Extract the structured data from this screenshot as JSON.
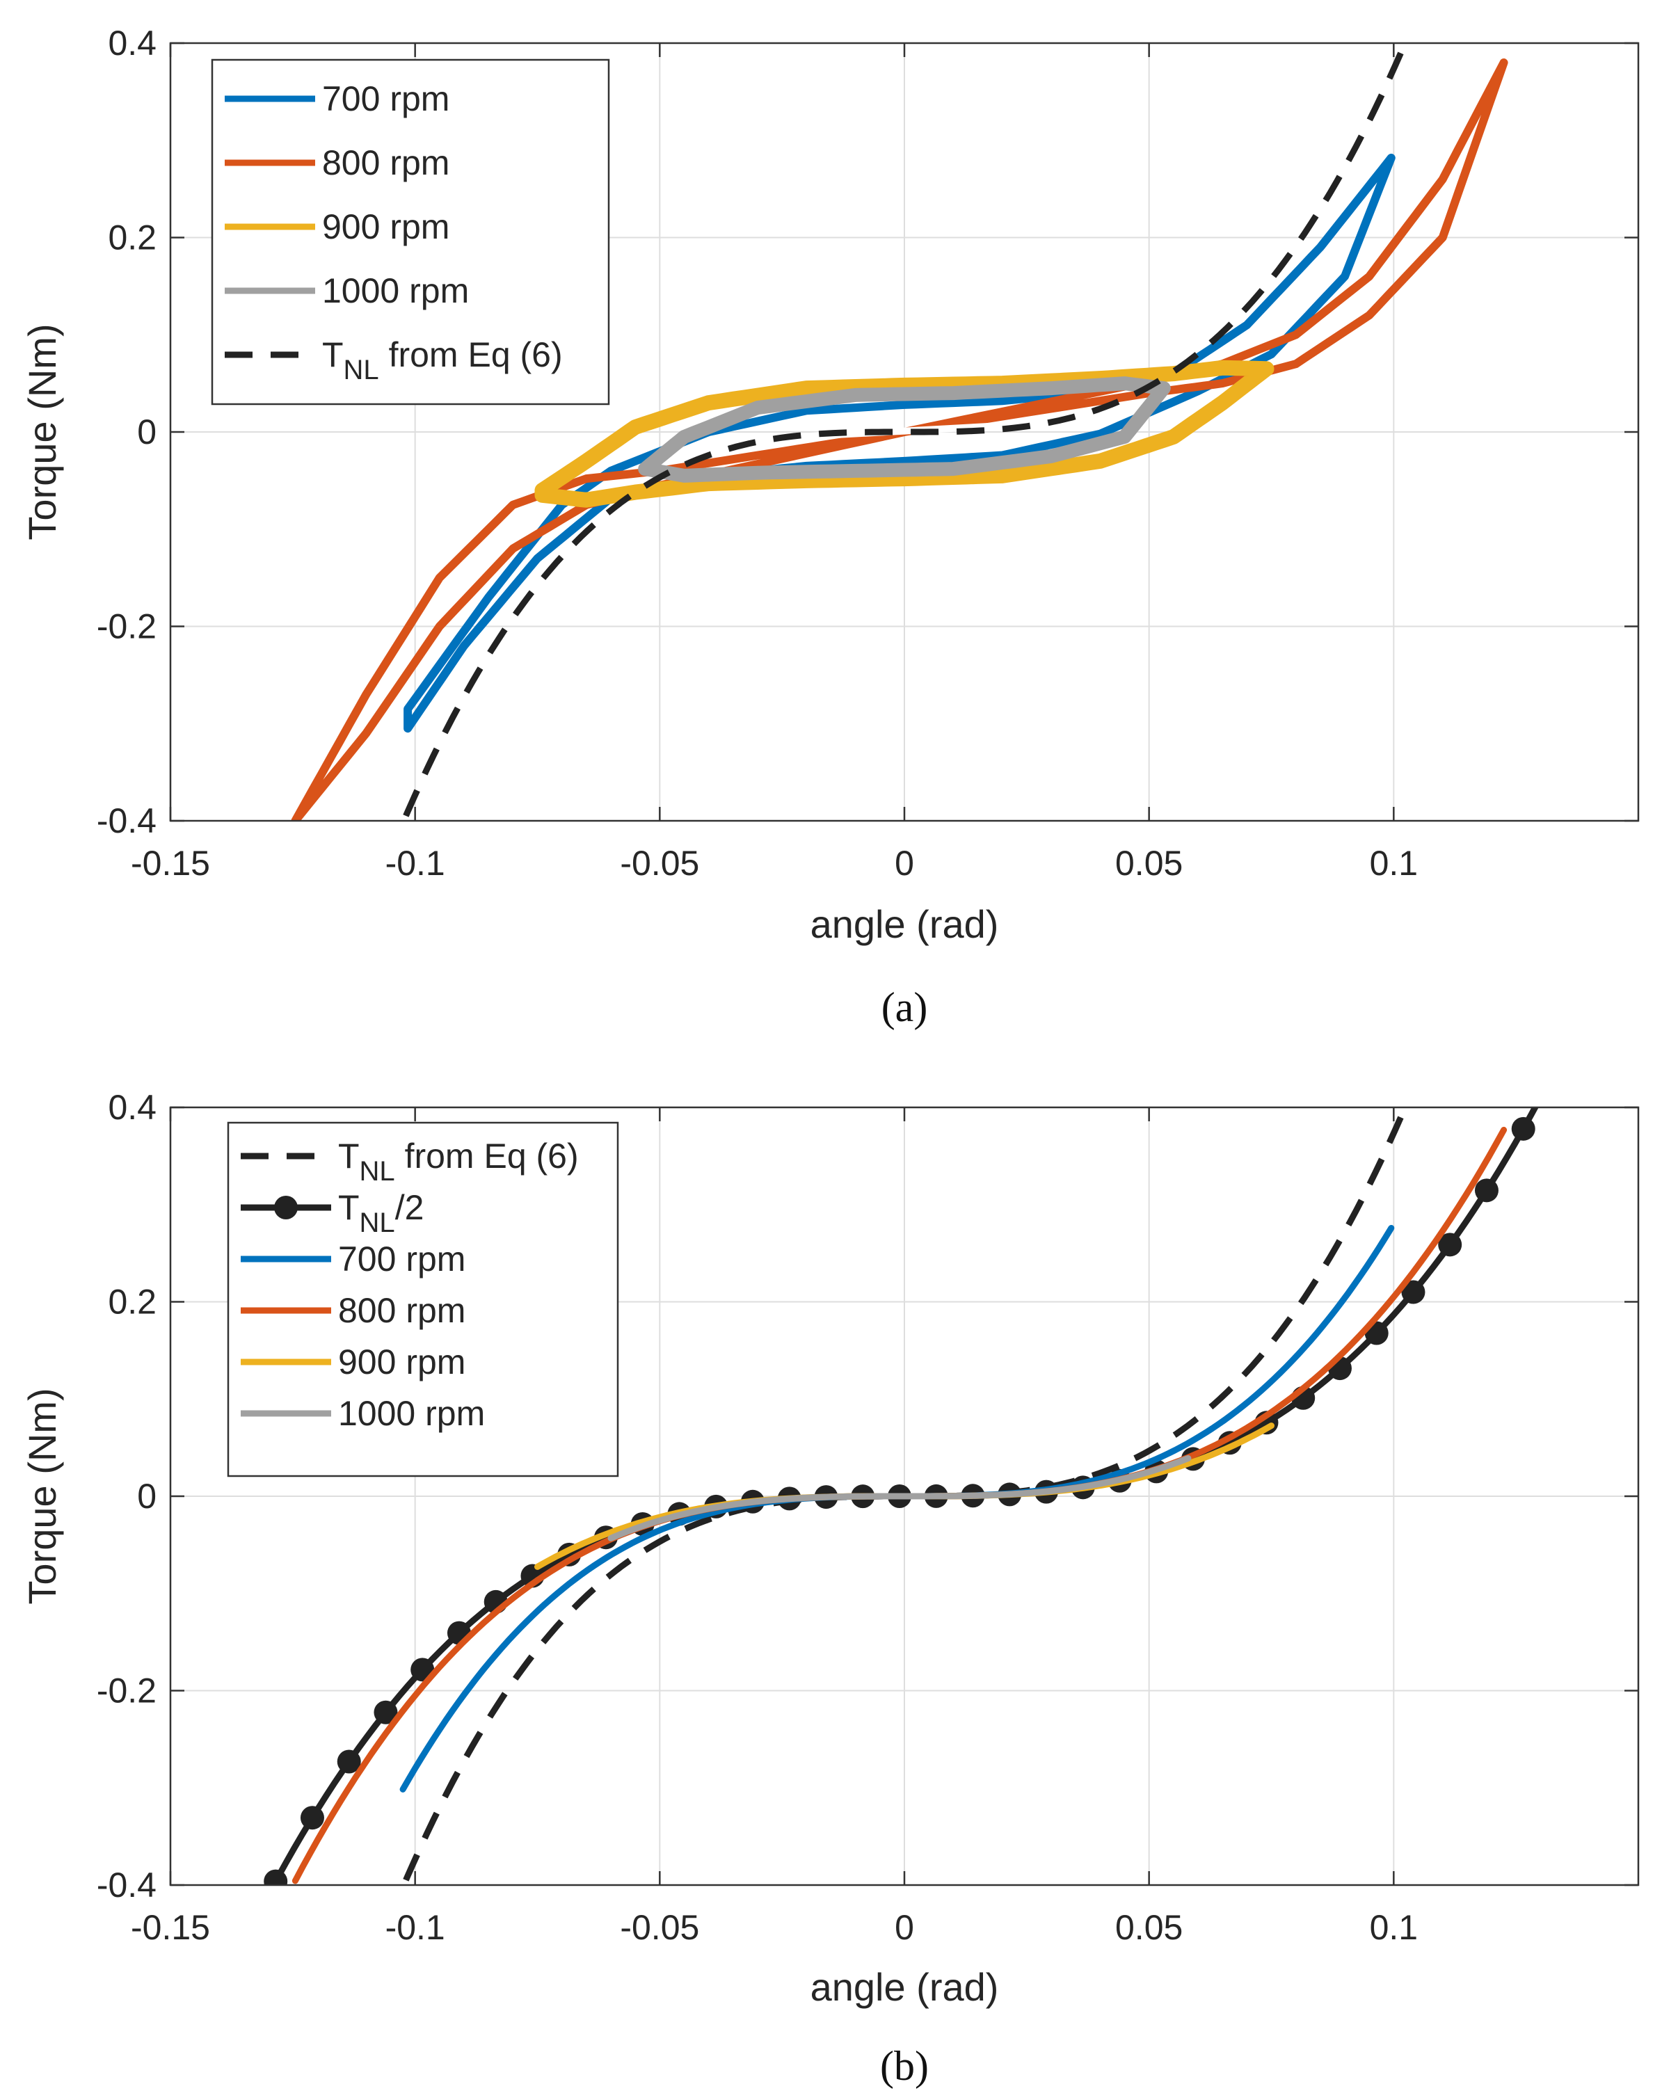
{
  "figure": {
    "panels": [
      {
        "caption": "(a)",
        "ylabel": "Torque (Nm)",
        "xlabel": "angle (rad)",
        "xlim": [
          -0.15,
          0.15
        ],
        "ylim": [
          -0.4,
          0.4
        ],
        "xticks": [
          "-0.15",
          "-0.1",
          "-0.05",
          "0",
          "0.05",
          "0.1"
        ],
        "yticks": [
          "-0.4",
          "-0.2",
          "0",
          "0.2",
          "0.4"
        ],
        "legend": [
          {
            "label": "700 rpm",
            "color": "#0072BD",
            "style": "solid"
          },
          {
            "label": "800 rpm",
            "color": "#D95319",
            "style": "solid"
          },
          {
            "label": "900 rpm",
            "color": "#EDB120",
            "style": "solid"
          },
          {
            "label": "1000 rpm",
            "color": "#A0A0A0",
            "style": "solid"
          },
          {
            "label": "T",
            "sub": "NL",
            "suffix": " from Eq (6)",
            "color": "#222222",
            "style": "dashed"
          }
        ]
      },
      {
        "caption": "(b)",
        "ylabel": "Torque (Nm)",
        "xlabel": "angle (rad)",
        "xlim": [
          -0.15,
          0.15
        ],
        "ylim": [
          -0.4,
          0.4
        ],
        "xticks": [
          "-0.15",
          "-0.1",
          "-0.05",
          "0",
          "0.05",
          "0.1"
        ],
        "yticks": [
          "-0.4",
          "-0.2",
          "0",
          "0.2",
          "0.4"
        ],
        "legend": [
          {
            "label": "T",
            "sub": "NL",
            "suffix": " from Eq (6)",
            "color": "#222222",
            "style": "dashed"
          },
          {
            "label": "T",
            "sub": "NL",
            "suffix": "/2",
            "color": "#222222",
            "style": "markers"
          },
          {
            "label": "700 rpm",
            "color": "#0072BD",
            "style": "solid"
          },
          {
            "label": "800 rpm",
            "color": "#D95319",
            "style": "solid"
          },
          {
            "label": "900 rpm",
            "color": "#EDB120",
            "style": "solid"
          },
          {
            "label": "1000 rpm",
            "color": "#A0A0A0",
            "style": "solid"
          }
        ]
      }
    ]
  },
  "chart_data": [
    {
      "type": "line",
      "xlabel": "angle (rad)",
      "ylabel": "Torque (Nm)",
      "xlim": [
        -0.15,
        0.15
      ],
      "ylim": [
        -0.4,
        0.4
      ],
      "grid": true,
      "legend_placement": "top-left",
      "series": [
        {
          "name": "700 rpm",
          "color": "#0072BD",
          "upper": {
            "x": [
              -0.1015,
              -0.085,
              -0.07,
              -0.06,
              -0.04,
              -0.02,
              0.0,
              0.02,
              0.04,
              0.055,
              0.07,
              0.085,
              0.0995
            ],
            "y": [
              -0.285,
              -0.17,
              -0.075,
              -0.04,
              -0.0,
              0.022,
              0.028,
              0.032,
              0.042,
              0.06,
              0.11,
              0.19,
              0.282
            ]
          },
          "lower": {
            "x": [
              -0.1015,
              -0.09,
              -0.075,
              -0.06,
              -0.04,
              -0.02,
              0.0,
              0.02,
              0.04,
              0.06,
              0.075,
              0.09,
              0.0995
            ],
            "y": [
              -0.305,
              -0.22,
              -0.13,
              -0.068,
              -0.045,
              -0.035,
              -0.03,
              -0.024,
              -0.002,
              0.042,
              0.08,
              0.16,
              0.282
            ]
          }
        },
        {
          "name": "800 rpm",
          "color": "#D95319",
          "upper": {
            "x": [
              -0.1245,
              -0.11,
              -0.095,
              -0.08,
              -0.065,
              -0.05,
              0.0,
              0.05,
              0.065,
              0.08,
              0.095,
              0.11,
              0.1225
            ],
            "y": [
              -0.4,
              -0.27,
              -0.15,
              -0.075,
              -0.048,
              -0.04,
              0.0,
              0.052,
              0.07,
              0.1,
              0.16,
              0.26,
              0.38
            ]
          },
          "lower": {
            "x": [
              -0.1245,
              -0.11,
              -0.095,
              -0.08,
              -0.065,
              -0.05,
              0.0,
              0.05,
              0.065,
              0.08,
              0.095,
              0.11,
              0.1225
            ],
            "y": [
              -0.4,
              -0.31,
              -0.2,
              -0.12,
              -0.075,
              -0.055,
              0.0,
              0.04,
              0.05,
              0.07,
              0.12,
              0.2,
              0.38
            ]
          }
        },
        {
          "name": "900 rpm",
          "color": "#EDB120",
          "upper": {
            "x": [
              -0.074,
              -0.065,
              -0.055,
              -0.04,
              -0.02,
              0.0,
              0.02,
              0.04,
              0.055,
              0.065,
              0.074
            ],
            "y": [
              -0.06,
              -0.03,
              0.005,
              0.03,
              0.045,
              0.048,
              0.05,
              0.055,
              0.06,
              0.066,
              0.065
            ]
          },
          "lower": {
            "x": [
              -0.074,
              -0.065,
              -0.055,
              -0.04,
              -0.02,
              0.0,
              0.02,
              0.04,
              0.055,
              0.065,
              0.074
            ],
            "y": [
              -0.065,
              -0.07,
              -0.062,
              -0.053,
              -0.05,
              -0.048,
              -0.045,
              -0.03,
              -0.005,
              0.03,
              0.065
            ]
          }
        },
        {
          "name": "1000 rpm",
          "color": "#A0A0A0",
          "upper": {
            "x": [
              -0.053,
              -0.045,
              -0.03,
              -0.01,
              0.01,
              0.03,
              0.045,
              0.053
            ],
            "y": [
              -0.038,
              -0.005,
              0.025,
              0.038,
              0.04,
              0.045,
              0.05,
              0.045
            ]
          },
          "lower": {
            "x": [
              -0.053,
              -0.045,
              -0.03,
              -0.01,
              0.01,
              0.03,
              0.045,
              0.053
            ],
            "y": [
              -0.038,
              -0.045,
              -0.042,
              -0.04,
              -0.038,
              -0.025,
              -0.005,
              0.045
            ]
          }
        },
        {
          "name": "T_NL from Eq (6)",
          "color": "#222222",
          "style": "dashed",
          "formula": "y = 373.4 * x^3",
          "x_range": [
            -0.1055,
            0.1055
          ]
        }
      ]
    },
    {
      "type": "line",
      "xlabel": "angle (rad)",
      "ylabel": "Torque (Nm)",
      "xlim": [
        -0.15,
        0.15
      ],
      "ylim": [
        -0.4,
        0.4
      ],
      "grid": true,
      "legend_placement": "top-left",
      "series": [
        {
          "name": "T_NL from Eq (6)",
          "color": "#222222",
          "style": "dashed",
          "formula": "y = 373.4 * x^3",
          "x_range": [
            -0.1055,
            0.1055
          ]
        },
        {
          "name": "T_NL/2",
          "color": "#222222",
          "style": "markers",
          "formula": "y = 186.7 * x^3",
          "x_range": [
            -0.1331,
            0.1331
          ],
          "marker_x": [
            -0.1285,
            -0.121,
            -0.1135,
            -0.106,
            -0.0985,
            -0.091,
            -0.0835,
            -0.076,
            -0.0685,
            -0.061,
            -0.0535,
            -0.046,
            -0.0385,
            -0.031,
            -0.0235,
            -0.016,
            -0.0085,
            -0.001,
            0.0065,
            0.014,
            0.0215,
            0.029,
            0.0365,
            0.044,
            0.0515,
            0.059,
            0.0665,
            0.074,
            0.0815,
            0.089,
            0.0965,
            0.104,
            0.1115,
            0.119,
            0.1265
          ]
        },
        {
          "name": "700 rpm",
          "color": "#0072BD",
          "style": "solid",
          "formula": "y = 280 * x^3",
          "x_range": [
            -0.1025,
            0.0995
          ]
        },
        {
          "name": "800 rpm",
          "color": "#D95319",
          "style": "solid",
          "formula": "y = 205 * x^3",
          "x_range": [
            -0.1245,
            0.1225
          ]
        },
        {
          "name": "900 rpm",
          "color": "#EDB120",
          "style": "solid",
          "formula": "y = 172 * x^3",
          "x_range": [
            -0.075,
            0.075
          ]
        },
        {
          "name": "1000 rpm",
          "color": "#A0A0A0",
          "style": "solid",
          "formula": "y = 200 * x^3",
          "x_range": [
            -0.06,
            0.058
          ]
        }
      ]
    }
  ]
}
